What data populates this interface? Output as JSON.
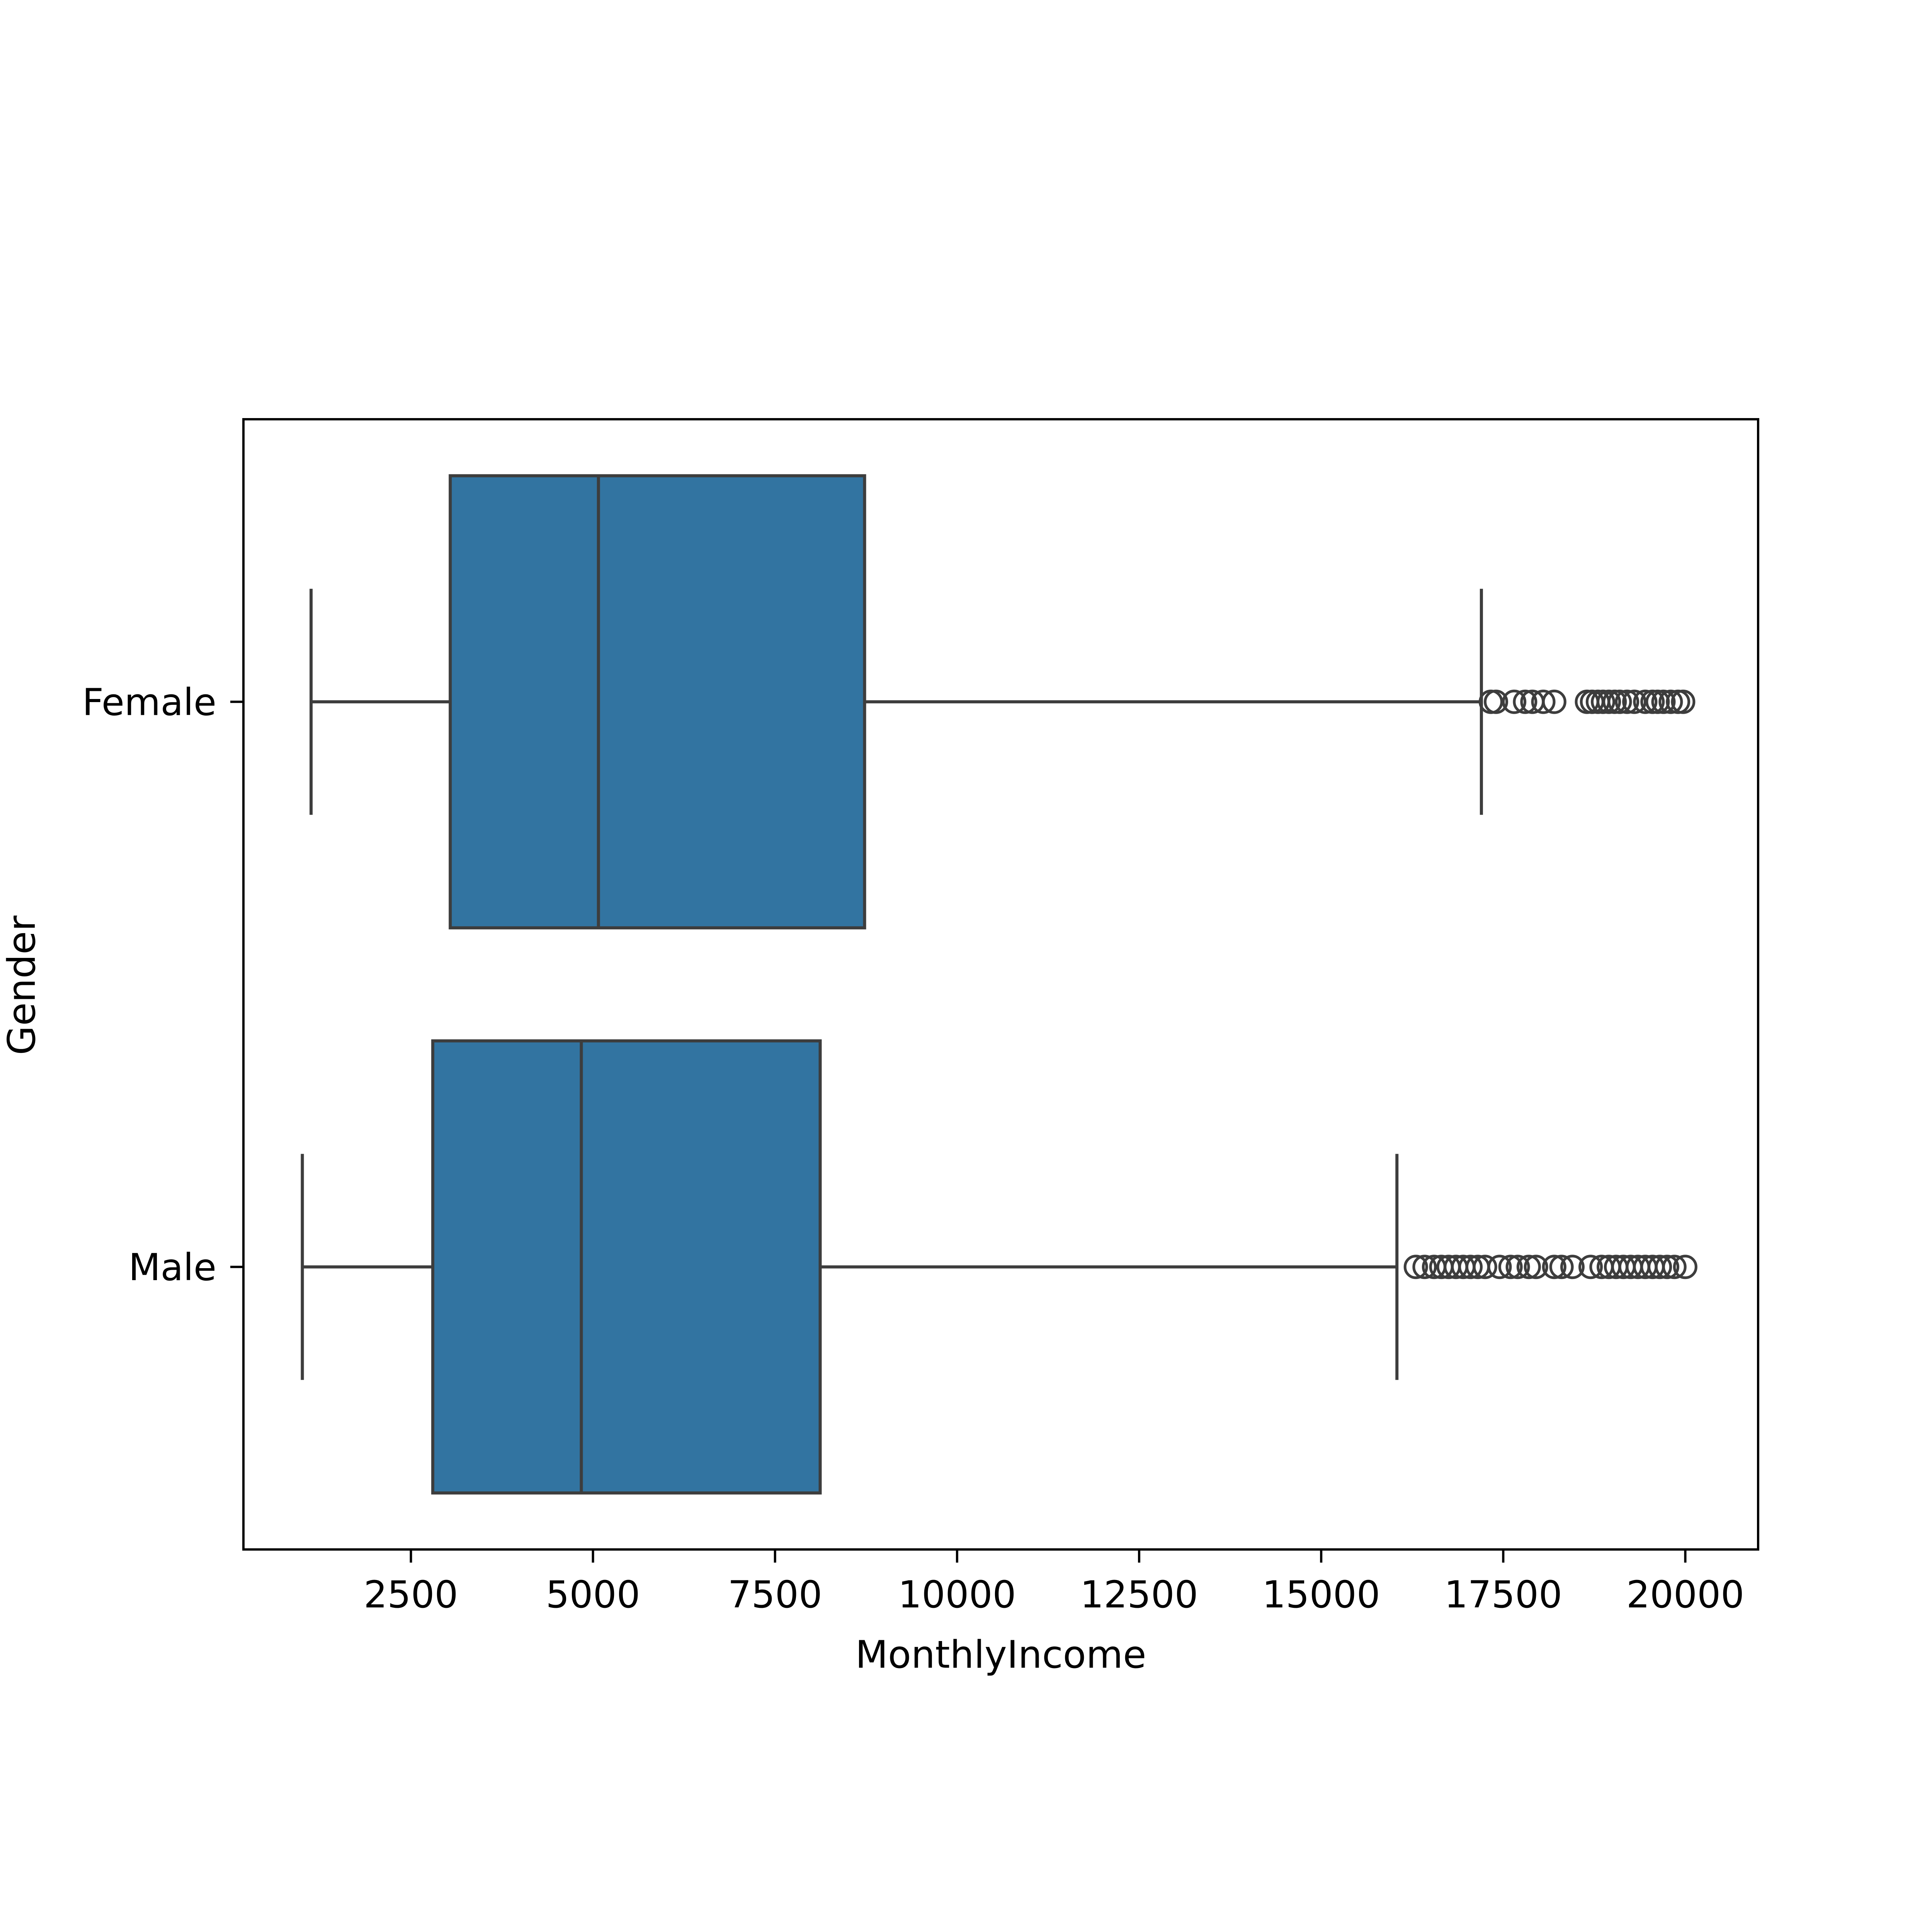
{
  "chart_data": {
    "type": "box",
    "orientation": "horizontal",
    "title": "",
    "xlabel": "MonthlyIncome",
    "ylabel": "Gender",
    "xlim": [
      200,
      21000
    ],
    "xticks": [
      2500,
      5000,
      7500,
      10000,
      12500,
      15000,
      17500,
      20000
    ],
    "grid": false,
    "legend": "none",
    "colors": {
      "box_fill": "#3274a1",
      "line": "#3d3d3d",
      "axes": "#000000"
    },
    "categories": [
      "Female",
      "Male"
    ],
    "series": [
      {
        "category": "Female",
        "whisker_low": 1129,
        "q1": 3040,
        "median": 5075,
        "q3": 8730,
        "whisker_high": 17200,
        "outliers": [
          17330,
          17400,
          17650,
          17800,
          17900,
          18050,
          18200,
          18650,
          18720,
          18800,
          18870,
          18950,
          19030,
          19100,
          19200,
          19300,
          19450,
          19550,
          19620,
          19700,
          19800,
          19900,
          19970
        ]
      },
      {
        "category": "Male",
        "whisker_low": 1009,
        "q1": 2800,
        "median": 4840,
        "q3": 8120,
        "whisker_high": 16040,
        "outliers": [
          16300,
          16420,
          16550,
          16650,
          16750,
          16850,
          16950,
          17050,
          17150,
          17250,
          17450,
          17600,
          17700,
          17850,
          17950,
          18200,
          18300,
          18450,
          18700,
          18850,
          18950,
          19050,
          19150,
          19250,
          19350,
          19450,
          19550,
          19650,
          19750,
          19850,
          19999
        ]
      }
    ]
  }
}
